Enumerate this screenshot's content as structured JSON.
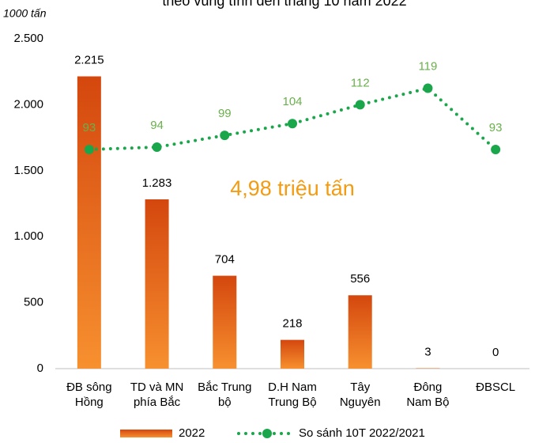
{
  "chart_data": {
    "type": "bar",
    "title": "theo vùng tính đến tháng 10 năm 2022",
    "y_label": "1000 tấn",
    "annotation": "4,98 triệu tấn",
    "categories": [
      "ĐB sông\nHồng",
      "TD và MN\nphía Bắc",
      "Bắc Trung\nbộ",
      "D.H Nam\nTrung Bộ",
      "Tây\nNguyên",
      "Đông\nNam Bộ",
      "ĐBSCL"
    ],
    "series": [
      {
        "name": "2022",
        "type": "bar",
        "color": "#e8621a",
        "values": [
          2215,
          1283,
          704,
          218,
          556,
          3,
          0
        ],
        "value_labels": [
          "2.215",
          "1.283",
          "704",
          "218",
          "556",
          "3",
          "0"
        ]
      },
      {
        "name": "So sánh 10T 2022/2021",
        "type": "line",
        "axis": "y2",
        "color": "#1aa64a",
        "label_color": "#6ab04c",
        "values": [
          93,
          94,
          99,
          104,
          112,
          119,
          93
        ]
      }
    ],
    "ylim": [
      0,
      2500
    ],
    "yticks": [
      0,
      500,
      {
        "value": 1000,
        "label": "1.000"
      },
      {
        "value": 1500,
        "label": "1.500"
      },
      {
        "value": 2000,
        "label": "2.000"
      },
      {
        "value": 2500,
        "label": "2.500"
      }
    ],
    "y2lim": [
      0,
      140
    ],
    "grid": false
  }
}
